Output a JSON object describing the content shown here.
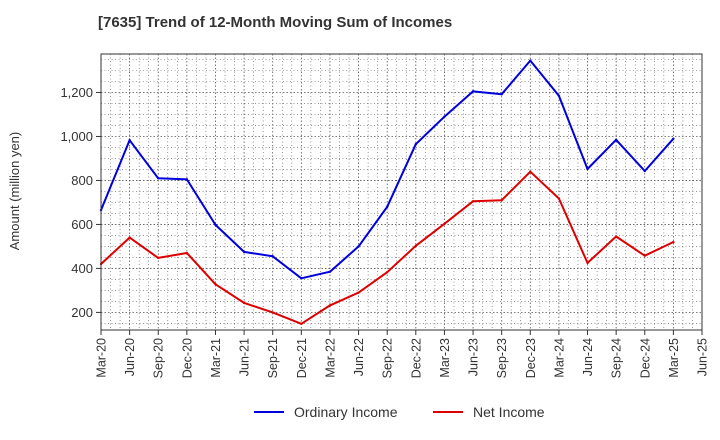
{
  "colors": {
    "ordinary": "#0000dd",
    "net": "#dd0000",
    "grid": "#555555",
    "axis": "#333333"
  },
  "chart_data": {
    "type": "line",
    "title": "[7635]  Trend of 12-Month Moving Sum of Incomes",
    "xlabel": "",
    "ylabel": "Amount (million yen)",
    "categories": [
      "Mar-20",
      "Jun-20",
      "Sep-20",
      "Dec-20",
      "Mar-21",
      "Jun-21",
      "Sep-21",
      "Dec-21",
      "Mar-22",
      "Jun-22",
      "Sep-22",
      "Dec-22",
      "Mar-23",
      "Jun-23",
      "Sep-23",
      "Dec-23",
      "Mar-24",
      "Jun-24",
      "Sep-24",
      "Dec-24",
      "Mar-25",
      "Jun-25"
    ],
    "ylim": [
      120,
      1375
    ],
    "yticks": [
      200,
      400,
      600,
      800,
      1000,
      1200
    ],
    "ytick_labels": [
      "200",
      "400",
      "600",
      "800",
      "1,000",
      "1,200"
    ],
    "grid": true,
    "legend_position": "bottom-center",
    "series": [
      {
        "name": "Ordinary Income",
        "color_key": "ordinary",
        "values": [
          665,
          983,
          810,
          805,
          598,
          475,
          455,
          355,
          385,
          500,
          680,
          965,
          1090,
          1205,
          1192,
          1345,
          1185,
          852,
          985,
          843,
          990,
          null
        ]
      },
      {
        "name": "Net Income",
        "color_key": "net",
        "values": [
          420,
          540,
          448,
          470,
          328,
          243,
          200,
          148,
          232,
          290,
          383,
          503,
          603,
          705,
          710,
          840,
          718,
          425,
          545,
          458,
          520,
          null
        ]
      }
    ]
  }
}
